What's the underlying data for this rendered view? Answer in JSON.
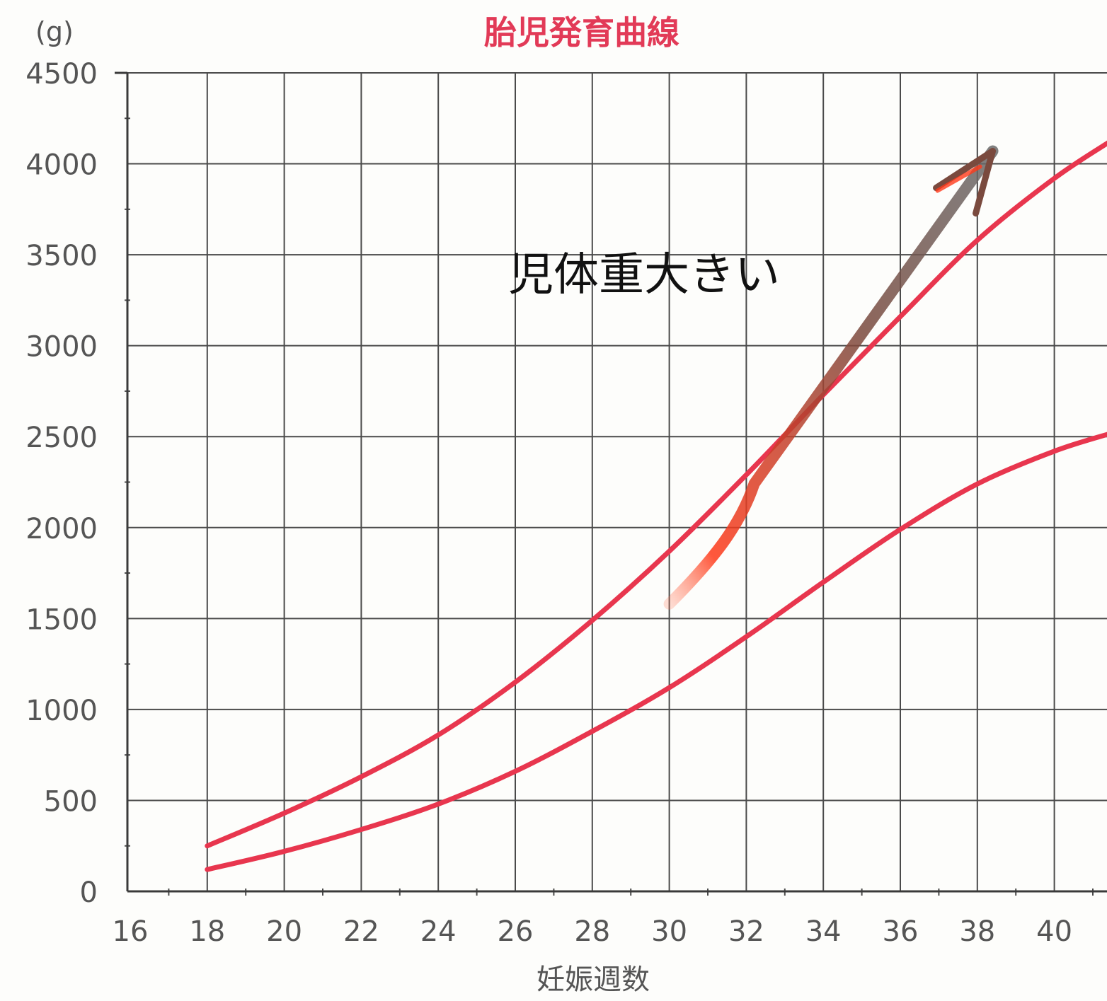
{
  "chart_data": {
    "type": "line",
    "title": "胎児発育曲線",
    "unit_label": "(g)",
    "xlabel": "妊娠週数",
    "xlim": [
      16,
      41.5
    ],
    "ylim": [
      0,
      4500
    ],
    "x_ticks": [
      "16",
      "18",
      "20",
      "22",
      "24",
      "26",
      "28",
      "30",
      "32",
      "34",
      "36",
      "38",
      "40"
    ],
    "y_ticks": [
      "0",
      "500",
      "1000",
      "1500",
      "2000",
      "2500",
      "3000",
      "3500",
      "4000",
      "4500"
    ],
    "grid": true,
    "series": [
      {
        "color": "#e8364e",
        "x": [
          18,
          20,
          22,
          24,
          26,
          28,
          30,
          32,
          34,
          36,
          38,
          40,
          41.5
        ],
        "y": [
          250,
          430,
          630,
          860,
          1150,
          1490,
          1870,
          2290,
          2730,
          3160,
          3580,
          3920,
          4130
        ]
      },
      {
        "color": "#e8364e",
        "x": [
          18,
          20,
          22,
          24,
          26,
          28,
          30,
          32,
          34,
          36,
          38,
          40,
          41.5
        ],
        "y": [
          120,
          220,
          340,
          480,
          660,
          880,
          1120,
          1400,
          1700,
          1990,
          2240,
          2420,
          2520
        ]
      }
    ],
    "annotation": {
      "text": "児体重大きい",
      "arrow_from": [
        30,
        1580
      ],
      "arrow_to": [
        38.4,
        4070
      ],
      "arrow_color": "#ff3a1a"
    }
  }
}
